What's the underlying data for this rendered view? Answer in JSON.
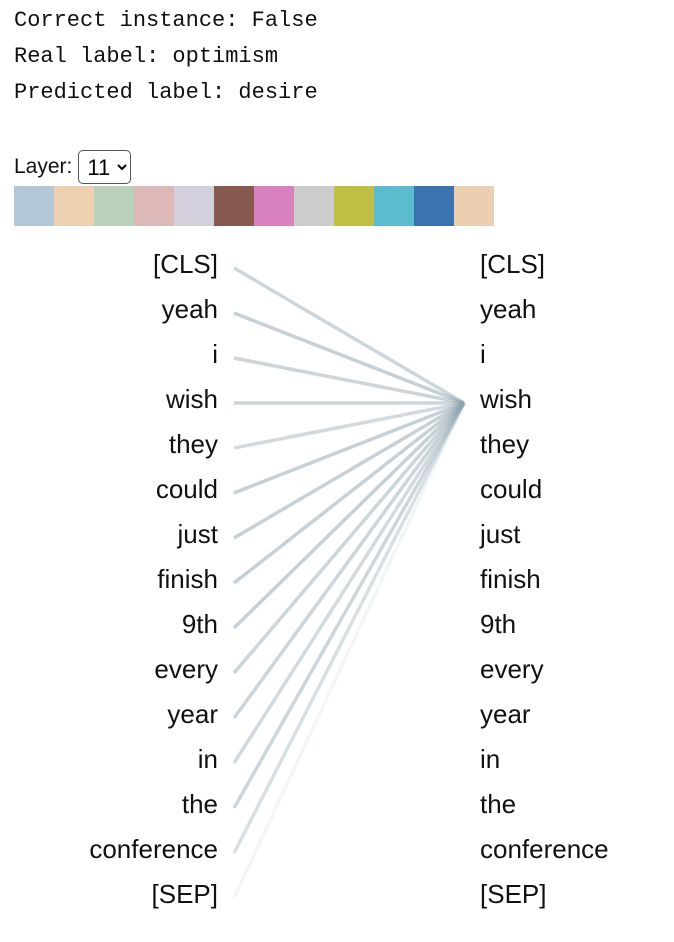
{
  "info": {
    "correct": "Correct instance: False",
    "real": "Real label: optimism",
    "predicted": "Predicted label: desire"
  },
  "layer_label": "Layer:",
  "layer_options": [
    "11"
  ],
  "head_colors": [
    "#b3c7d6",
    "#ecd0b0",
    "#b8d1b8",
    "#dcb8b8",
    "#d4d0dd",
    "#875a4f",
    "#d980c0",
    "#cccccc",
    "#bfbf46",
    "#5abccc",
    "#3a74b0",
    "#eccfb1"
  ],
  "left_tokens": [
    "[CLS]",
    "yeah",
    "i",
    "wish",
    "they",
    "could",
    "just",
    "finish",
    "9th",
    "every",
    "year",
    "in",
    "the",
    "conference",
    "[SEP]"
  ],
  "right_tokens": [
    "[CLS]",
    "yeah",
    "i",
    "wish",
    "they",
    "could",
    "just",
    "finish",
    "9th",
    "every",
    "year",
    "in",
    "the",
    "conference",
    "[SEP]"
  ],
  "attention_in": [
    null,
    null,
    null,
    [
      0.45,
      0.5,
      0.45,
      0.45,
      0.4,
      0.5,
      0.5,
      0.5,
      0.5,
      0.45,
      0.45,
      0.4,
      0.45,
      0.35,
      0.1
    ],
    null,
    null,
    null,
    null,
    null,
    null,
    null,
    null,
    null,
    null,
    null
  ],
  "line_color": "#8ea2ae"
}
